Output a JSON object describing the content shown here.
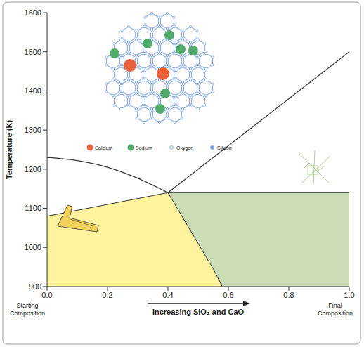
{
  "chart_data": {
    "type": "area",
    "x_label": "Increasing SiO₂ and CaO",
    "y_label": "Temperature (K)",
    "xlim": [
      0,
      1
    ],
    "xticks": [
      {
        "value": 0,
        "label": "0.0"
      },
      0.2,
      0.4,
      0.6,
      0.8,
      {
        "value": 1,
        "label": "1.0"
      }
    ],
    "ylim": [
      900,
      1600
    ],
    "yticks": [
      900,
      1000,
      1100,
      1200,
      1300,
      1400,
      1500,
      1600
    ],
    "grid": false,
    "series": [
      {
        "type": "area",
        "color": "#c9dcb3",
        "x": [
          0.4,
          1.0
        ],
        "values": [
          1140,
          1140
        ]
      },
      {
        "type": "area",
        "color": "#fff3a0",
        "x": [
          0,
          0.4,
          0.45,
          0.5,
          0.55,
          0.58
        ],
        "values": [
          1080,
          1140,
          1075,
          1010,
          945,
          900
        ]
      },
      {
        "type": "line",
        "color": "#333333",
        "line_style": "solid",
        "x": [
          0,
          0.1,
          0.2,
          0.3,
          0.4
        ],
        "values": [
          1230,
          1222,
          1205,
          1177,
          1140
        ]
      },
      {
        "type": "line",
        "color": "#333333",
        "line_style": "solid",
        "x": [
          0.4,
          1.0
        ],
        "values": [
          1140,
          1500
        ]
      }
    ],
    "annotations": [
      {
        "text": "Starting Composition",
        "x": 0
      },
      {
        "text": "Final Composition",
        "x": 1
      }
    ],
    "inset_legend": [
      {
        "label": "Calcium",
        "color": "#e8603c"
      },
      {
        "label": "Sodium",
        "color": "#4faa6a"
      },
      {
        "label": "Oxygen",
        "color": "#e8eef8"
      },
      {
        "label": "Silicon",
        "color": "#7fa3dc"
      }
    ]
  }
}
